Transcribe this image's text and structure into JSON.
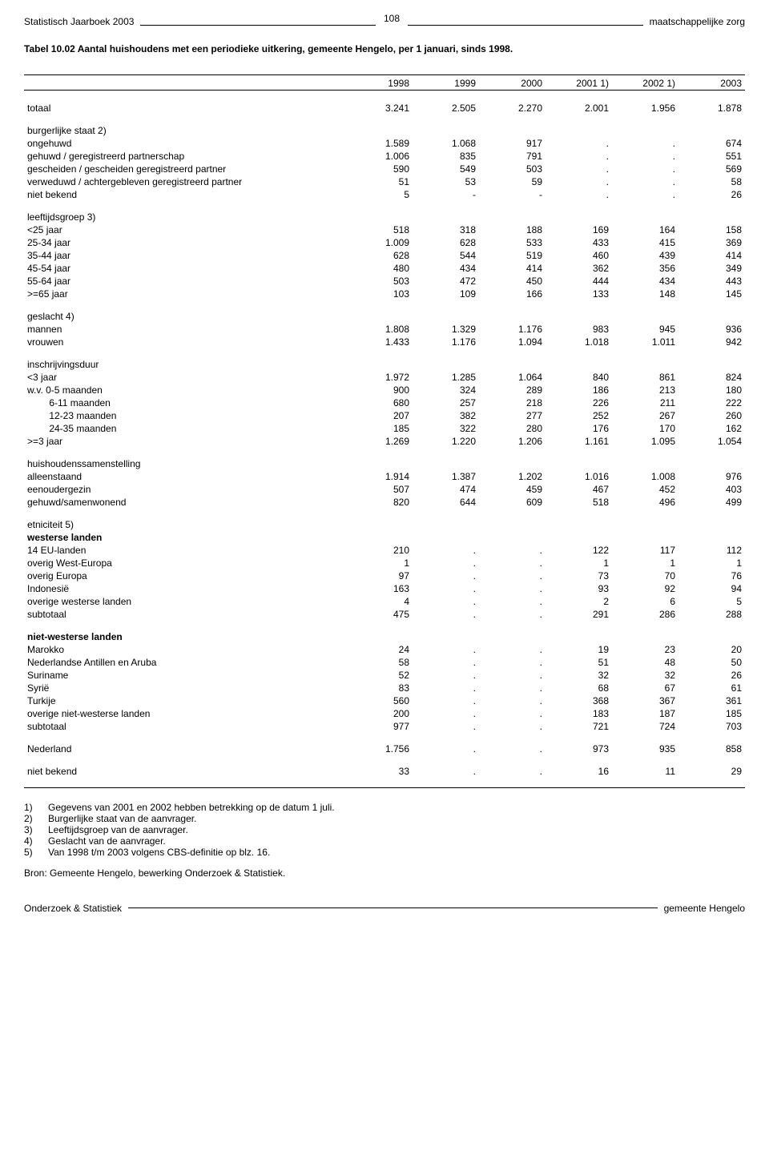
{
  "page_number": "108",
  "header_left": "Statistisch Jaarboek 2003",
  "header_right": "maatschappelijke zorg",
  "title": "Tabel 10.02   Aantal huishoudens met een periodieke uitkering, gemeente Hengelo, per 1 januari, sinds 1998.",
  "columns": [
    "1998",
    "1999",
    "2000",
    "2001  1)",
    "2002  1)",
    "2003"
  ],
  "sections": [
    {
      "rows": [
        {
          "label": "totaal",
          "v": [
            "3.241",
            "2.505",
            "2.270",
            "2.001",
            "1.956",
            "1.878"
          ]
        }
      ]
    },
    {
      "heading": "burgerlijke staat  2)",
      "rows": [
        {
          "label": "ongehuwd",
          "v": [
            "1.589",
            "1.068",
            "917",
            ".",
            ".",
            "674"
          ]
        },
        {
          "label": "gehuwd / geregistreerd partnerschap",
          "v": [
            "1.006",
            "835",
            "791",
            ".",
            ".",
            "551"
          ]
        },
        {
          "label": "gescheiden / gescheiden geregistreerd partner",
          "v": [
            "590",
            "549",
            "503",
            ".",
            ".",
            "569"
          ]
        },
        {
          "label": "verweduwd / achtergebleven geregistreerd partner",
          "v": [
            "51",
            "53",
            "59",
            ".",
            ".",
            "58"
          ]
        },
        {
          "label": "niet bekend",
          "v": [
            "5",
            "-",
            "-",
            ".",
            ".",
            "26"
          ]
        }
      ]
    },
    {
      "heading": "leeftijdsgroep  3)",
      "rows": [
        {
          "label": "<25 jaar",
          "v": [
            "518",
            "318",
            "188",
            "169",
            "164",
            "158"
          ]
        },
        {
          "label": "25-34 jaar",
          "v": [
            "1.009",
            "628",
            "533",
            "433",
            "415",
            "369"
          ]
        },
        {
          "label": "35-44 jaar",
          "v": [
            "628",
            "544",
            "519",
            "460",
            "439",
            "414"
          ]
        },
        {
          "label": "45-54 jaar",
          "v": [
            "480",
            "434",
            "414",
            "362",
            "356",
            "349"
          ]
        },
        {
          "label": "55-64 jaar",
          "v": [
            "503",
            "472",
            "450",
            "444",
            "434",
            "443"
          ]
        },
        {
          "label": ">=65 jaar",
          "v": [
            "103",
            "109",
            "166",
            "133",
            "148",
            "145"
          ]
        }
      ]
    },
    {
      "heading": "geslacht  4)",
      "rows": [
        {
          "label": "mannen",
          "v": [
            "1.808",
            "1.329",
            "1.176",
            "983",
            "945",
            "936"
          ]
        },
        {
          "label": "vrouwen",
          "v": [
            "1.433",
            "1.176",
            "1.094",
            "1.018",
            "1.011",
            "942"
          ]
        }
      ]
    },
    {
      "heading": "inschrijvingsduur",
      "rows": [
        {
          "label": "<3 jaar",
          "v": [
            "1.972",
            "1.285",
            "1.064",
            "840",
            "861",
            "824"
          ]
        },
        {
          "label": "w.v.   0-5 maanden",
          "v": [
            "900",
            "324",
            "289",
            "186",
            "213",
            "180"
          ]
        },
        {
          "label": "    6-11 maanden",
          "v": [
            "680",
            "257",
            "218",
            "226",
            "211",
            "222"
          ]
        },
        {
          "label": "    12-23 maanden",
          "v": [
            "207",
            "382",
            "277",
            "252",
            "267",
            "260"
          ]
        },
        {
          "label": "    24-35 maanden",
          "v": [
            "185",
            "322",
            "280",
            "176",
            "170",
            "162"
          ]
        },
        {
          "label": ">=3 jaar",
          "v": [
            "1.269",
            "1.220",
            "1.206",
            "1.161",
            "1.095",
            "1.054"
          ]
        }
      ]
    },
    {
      "heading": "huishoudenssamenstelling",
      "rows": [
        {
          "label": "alleenstaand",
          "v": [
            "1.914",
            "1.387",
            "1.202",
            "1.016",
            "1.008",
            "976"
          ]
        },
        {
          "label": "eenoudergezin",
          "v": [
            "507",
            "474",
            "459",
            "467",
            "452",
            "403"
          ]
        },
        {
          "label": "gehuwd/samenwonend",
          "v": [
            "820",
            "644",
            "609",
            "518",
            "496",
            "499"
          ]
        }
      ]
    },
    {
      "heading": "etniciteit  5)",
      "subheading": "westerse landen",
      "rows": [
        {
          "label": "14 EU-landen",
          "v": [
            "210",
            ".",
            ".",
            "122",
            "117",
            "112"
          ]
        },
        {
          "label": "overig West-Europa",
          "v": [
            "1",
            ".",
            ".",
            "1",
            "1",
            "1"
          ]
        },
        {
          "label": "overig Europa",
          "v": [
            "97",
            ".",
            ".",
            "73",
            "70",
            "76"
          ]
        },
        {
          "label": "Indonesië",
          "v": [
            "163",
            ".",
            ".",
            "93",
            "92",
            "94"
          ]
        },
        {
          "label": "overige westerse landen",
          "v": [
            "4",
            ".",
            ".",
            "2",
            "6",
            "5"
          ]
        },
        {
          "label": "subtotaal",
          "v": [
            "475",
            ".",
            ".",
            "291",
            "286",
            "288"
          ]
        }
      ]
    },
    {
      "subheading": "niet-westerse landen",
      "rows": [
        {
          "label": "Marokko",
          "v": [
            "24",
            ".",
            ".",
            "19",
            "23",
            "20"
          ]
        },
        {
          "label": "Nederlandse Antillen en Aruba",
          "v": [
            "58",
            ".",
            ".",
            "51",
            "48",
            "50"
          ]
        },
        {
          "label": "Suriname",
          "v": [
            "52",
            ".",
            ".",
            "32",
            "32",
            "26"
          ]
        },
        {
          "label": "Syrië",
          "v": [
            "83",
            ".",
            ".",
            "68",
            "67",
            "61"
          ]
        },
        {
          "label": "Turkije",
          "v": [
            "560",
            ".",
            ".",
            "368",
            "367",
            "361"
          ]
        },
        {
          "label": "overige niet-westerse landen",
          "v": [
            "200",
            ".",
            ".",
            "183",
            "187",
            "185"
          ]
        },
        {
          "label": "subtotaal",
          "v": [
            "977",
            ".",
            ".",
            "721",
            "724",
            "703"
          ]
        }
      ]
    },
    {
      "rows": [
        {
          "label": "Nederland",
          "v": [
            "1.756",
            ".",
            ".",
            "973",
            "935",
            "858"
          ]
        }
      ]
    },
    {
      "rows": [
        {
          "label": "niet bekend",
          "v": [
            "33",
            ".",
            ".",
            "16",
            "11",
            "29"
          ]
        }
      ]
    }
  ],
  "footnotes": [
    {
      "n": "1)",
      "text": "Gegevens van 2001 en 2002 hebben betrekking op de datum 1 juli."
    },
    {
      "n": "2)",
      "text": "Burgerlijke staat van de aanvrager."
    },
    {
      "n": "3)",
      "text": "Leeftijdsgroep van de aanvrager."
    },
    {
      "n": "4)",
      "text": "Geslacht van de aanvrager."
    },
    {
      "n": "5)",
      "text": "Van 1998 t/m 2003 volgens CBS-definitie op blz. 16."
    }
  ],
  "source": "Bron: Gemeente Hengelo,  bewerking Onderzoek & Statistiek.",
  "footer_left": "Onderzoek & Statistiek",
  "footer_right": "gemeente Hengelo"
}
